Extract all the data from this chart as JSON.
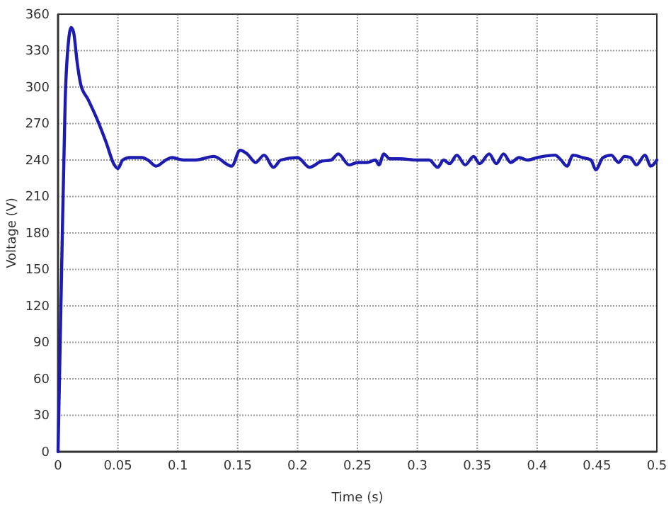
{
  "chart_data": {
    "type": "line",
    "xlabel": "Time (s)",
    "ylabel": "Voltage (V)",
    "xlim": [
      0,
      0.5
    ],
    "xticks": [
      0,
      0.05,
      0.1,
      0.15,
      0.2,
      0.25,
      0.3,
      0.35,
      0.4,
      0.45,
      0.5
    ],
    "ylim": [
      0,
      360
    ],
    "yticks": [
      0,
      30,
      60,
      90,
      120,
      150,
      180,
      210,
      240,
      270,
      300,
      330,
      360
    ],
    "grid": true,
    "line_style": "solid",
    "marker": "none",
    "series": [
      {
        "color": "#1c1cb0",
        "x": [
          0,
          0.003,
          0.006,
          0.009,
          0.011,
          0.013,
          0.016,
          0.019,
          0.025,
          0.032,
          0.04,
          0.047,
          0.05,
          0.054,
          0.06,
          0.07,
          0.075,
          0.082,
          0.09,
          0.095,
          0.105,
          0.115,
          0.13,
          0.145,
          0.152,
          0.158,
          0.165,
          0.172,
          0.18,
          0.186,
          0.2,
          0.21,
          0.22,
          0.228,
          0.234,
          0.243,
          0.25,
          0.258,
          0.265,
          0.268,
          0.272,
          0.277,
          0.285,
          0.3,
          0.31,
          0.317,
          0.322,
          0.327,
          0.333,
          0.34,
          0.347,
          0.352,
          0.36,
          0.366,
          0.372,
          0.378,
          0.385,
          0.392,
          0.4,
          0.415,
          0.42,
          0.425,
          0.43,
          0.438,
          0.445,
          0.449,
          0.455,
          0.462,
          0.468,
          0.473,
          0.478,
          0.483,
          0.49,
          0.495,
          0.5
        ],
        "values": [
          0,
          150,
          290,
          340,
          349,
          345,
          320,
          302,
          290,
          275,
          255,
          236,
          233,
          240,
          242,
          242,
          240,
          235,
          240,
          242,
          240,
          240,
          243,
          235,
          248,
          245,
          238,
          244,
          234,
          240,
          242,
          234,
          239,
          240,
          245,
          236,
          238,
          238,
          240,
          236,
          245,
          241,
          241,
          240,
          240,
          234,
          240,
          237,
          244,
          236,
          243,
          237,
          245,
          237,
          245,
          238,
          242,
          240,
          242,
          244,
          240,
          235,
          244,
          242,
          240,
          232,
          242,
          244,
          238,
          243,
          242,
          236,
          244,
          235,
          240
        ]
      }
    ]
  }
}
